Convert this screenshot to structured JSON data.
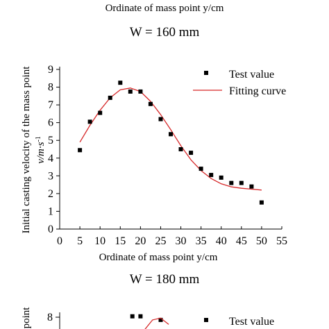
{
  "top_caption": "Ordinate of mass point y/cm",
  "chart_data": [
    {
      "type": "scatter",
      "title": "W = 160 mm",
      "xlabel": "Ordinate of mass point y/cm",
      "ylabel_main": "Initial casting velocity of the mass point",
      "ylabel_unit": "v/m·s-1",
      "xlim": [
        0,
        55
      ],
      "ylim": [
        0,
        9
      ],
      "xticks": [
        0,
        5,
        10,
        15,
        20,
        25,
        30,
        35,
        40,
        45,
        50,
        55
      ],
      "yticks": [
        0,
        1,
        2,
        3,
        4,
        5,
        6,
        7,
        8,
        9
      ],
      "legend_position": "top-right",
      "series": [
        {
          "name": "Test value",
          "kind": "scatter",
          "color": "#000000",
          "x": [
            5,
            7.5,
            10,
            12.5,
            15,
            17.5,
            20,
            22.5,
            25,
            27.5,
            30,
            32.5,
            35,
            37.5,
            40,
            42.5,
            45,
            47.5,
            50
          ],
          "y": [
            4.45,
            6.05,
            6.55,
            7.4,
            8.25,
            7.75,
            7.75,
            7.05,
            6.2,
            5.35,
            4.5,
            4.3,
            3.4,
            3.05,
            2.9,
            2.6,
            2.6,
            2.4,
            1.5
          ]
        },
        {
          "name": "Fitting curve",
          "kind": "line",
          "color": "#d62728",
          "x": [
            5,
            7.5,
            10,
            12.5,
            15,
            17.5,
            20,
            22.5,
            25,
            27.5,
            30,
            32.5,
            35,
            37.5,
            40,
            42.5,
            45,
            47.5,
            50
          ],
          "y": [
            4.9,
            5.85,
            6.7,
            7.4,
            7.85,
            7.95,
            7.75,
            7.2,
            6.45,
            5.6,
            4.7,
            3.9,
            3.3,
            2.85,
            2.55,
            2.38,
            2.3,
            2.25,
            2.2
          ]
        }
      ]
    },
    {
      "type": "scatter",
      "title": "W = 180 mm",
      "ylabel_main": "point",
      "visible_ytick": "8",
      "legend_position": "top-right",
      "legend": [
        "Test value"
      ],
      "series": [
        {
          "name": "Test value",
          "kind": "scatter",
          "color": "#000000",
          "x": [
            18,
            20,
            25
          ],
          "y": [
            8.05,
            8.05,
            7.85
          ]
        },
        {
          "kind": "line",
          "color": "#d62728",
          "x": [
            21,
            23,
            25,
            27
          ],
          "y": [
            7.3,
            7.85,
            7.95,
            7.6
          ]
        }
      ]
    }
  ]
}
